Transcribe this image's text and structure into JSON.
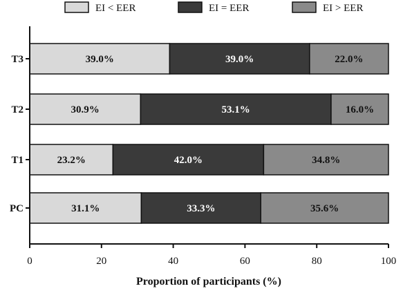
{
  "chart_data": {
    "type": "bar",
    "orientation": "horizontal",
    "stacked": true,
    "categories": [
      "T3",
      "T2",
      "T1",
      "PC"
    ],
    "series": [
      {
        "name": "EI < EER",
        "values": [
          39.0,
          30.9,
          23.2,
          31.1
        ],
        "labels": [
          "39.0%",
          "30.9%",
          "23.2%",
          "31.1%"
        ],
        "color": "#d9d9d9",
        "label_color": "#111111"
      },
      {
        "name": "EI = EER",
        "values": [
          39.0,
          53.1,
          42.0,
          33.3
        ],
        "labels": [
          "39.0%",
          "53.1%",
          "42.0%",
          "33.3%"
        ],
        "color": "#3a3a3a",
        "label_color": "#ffffff"
      },
      {
        "name": "EI > EER",
        "values": [
          22.0,
          16.0,
          34.8,
          35.6
        ],
        "labels": [
          "22.0%",
          "16.0%",
          "34.8%",
          "35.6%"
        ],
        "color": "#8a8a8a",
        "label_color": "#111111"
      }
    ],
    "xlabel": "Proportion of participants (%)",
    "ylabel": "",
    "xlim": [
      0,
      100
    ],
    "xticks": [
      "0",
      "20",
      "40",
      "60",
      "80",
      "100"
    ],
    "grid": false,
    "legend": "top"
  }
}
